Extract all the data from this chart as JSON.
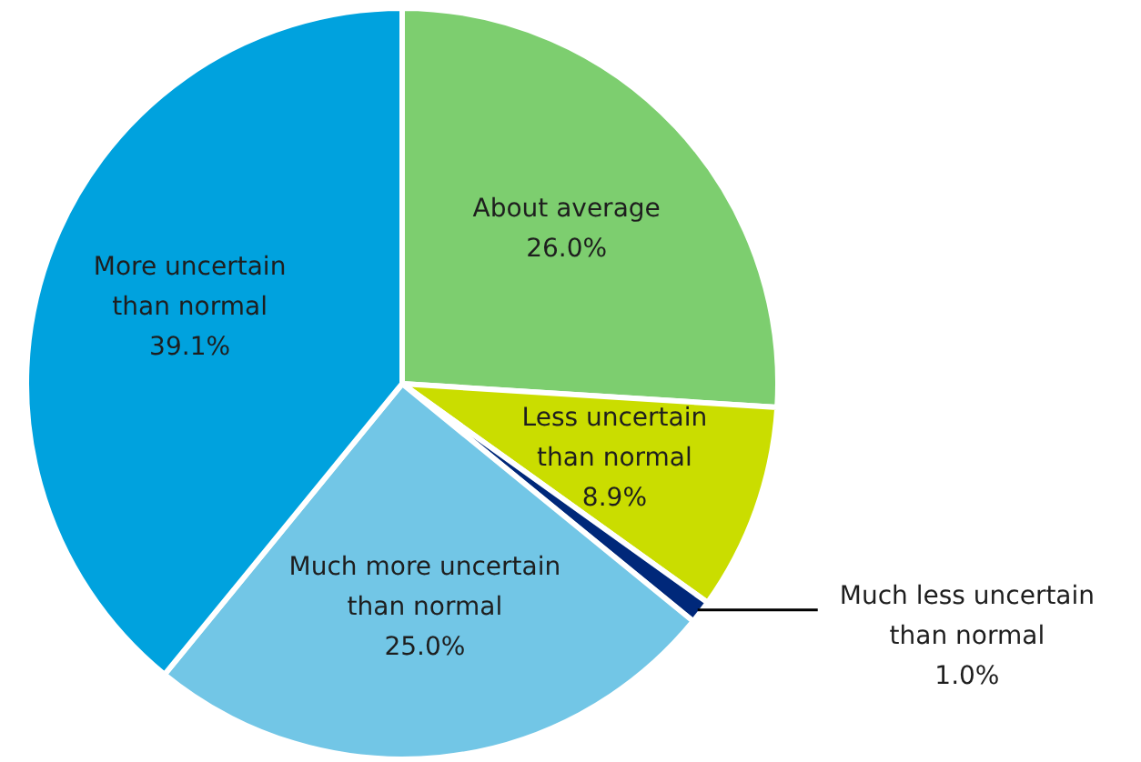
{
  "chart_data": {
    "type": "pie",
    "categories": [
      "About average",
      "Less uncertain than normal",
      "Much less uncertain than normal",
      "Much more uncertain than normal",
      "More uncertain than normal"
    ],
    "values": [
      26.0,
      8.9,
      1.0,
      25.0,
      39.1
    ],
    "colors": [
      "#7dce6f",
      "#cadd00",
      "#00287a",
      "#72c6e6",
      "#00a2de"
    ],
    "value_labels": [
      "26.0%",
      "8.9%",
      "1.0%",
      "25.0%",
      "39.1%"
    ]
  }
}
